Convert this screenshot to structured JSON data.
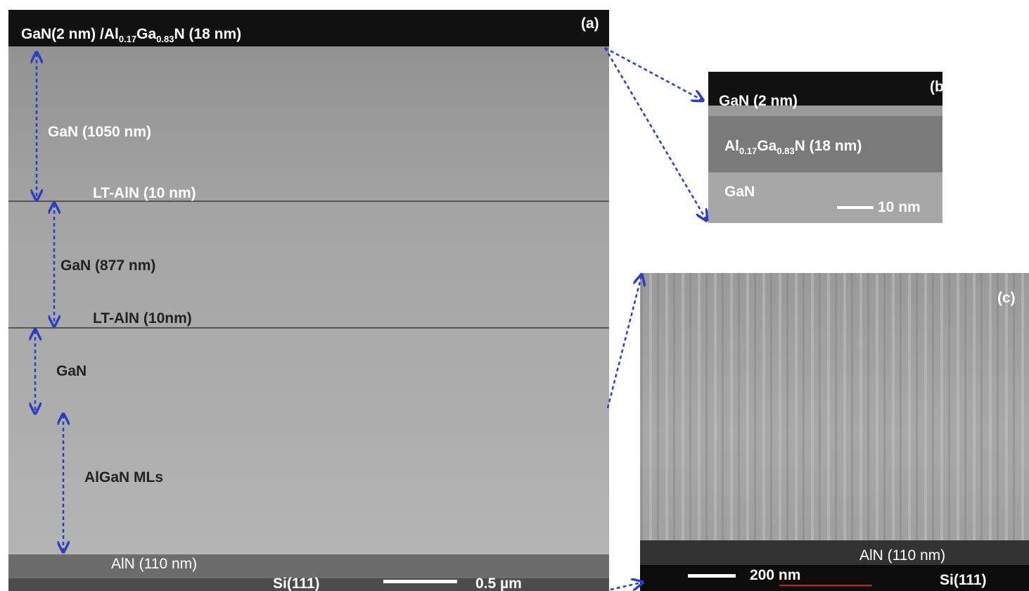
{
  "panel_a": {
    "tag": "(a)",
    "top_label": [
      "GaN(2 nm) /Al",
      "0.17",
      "Ga",
      "0.83",
      "N (18 nm)"
    ],
    "layers": [
      "GaN (1050 nm)",
      "LT-AlN (10 nm)",
      "GaN (877 nm)",
      "LT-AlN (10nm)",
      "GaN",
      "AlGaN MLs",
      "AlN (110 nm)",
      "Si(111)"
    ],
    "scale_bar": "0.5 µm"
  },
  "panel_b": {
    "tag": "(b)",
    "layers": [
      "GaN (2 nm)",
      [
        "Al",
        "0.17",
        "Ga",
        "0.83",
        "N (18 nm)"
      ],
      "GaN"
    ],
    "scale_bar": "10 nm"
  },
  "panel_c": {
    "tag": "(c)",
    "layers": [
      "AlN (110 nm)",
      "Si(111)"
    ],
    "scale_bar": "200 nm"
  }
}
